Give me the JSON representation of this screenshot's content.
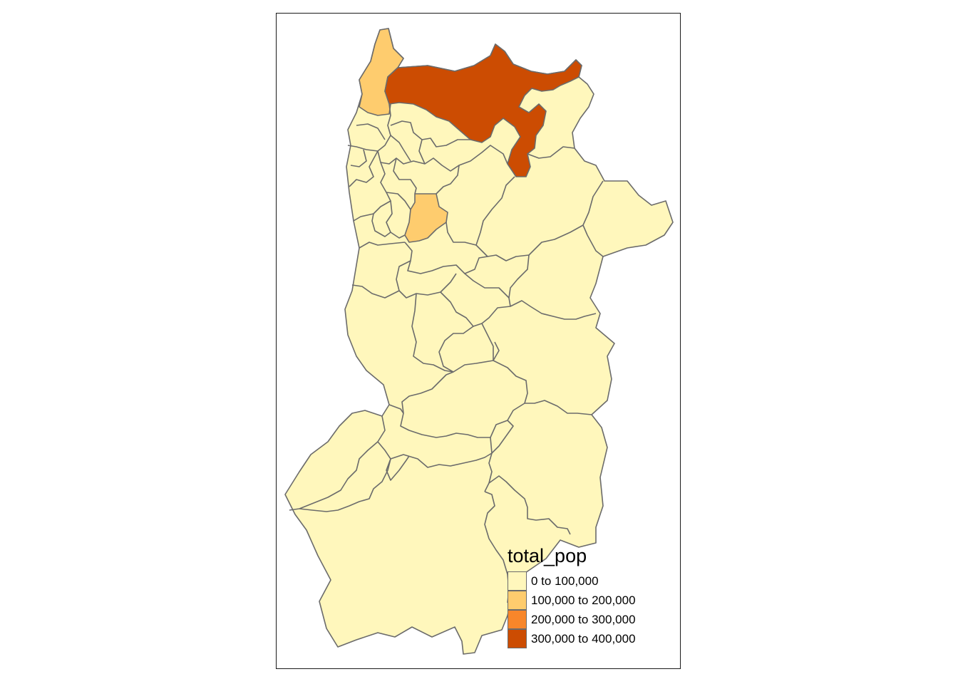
{
  "map": {
    "legend": {
      "title": "total_pop",
      "classes": [
        {
          "label": "0 to 100,000",
          "color": "#FFF7BC"
        },
        {
          "label": "100,000 to 200,000",
          "color": "#FECC6E"
        },
        {
          "label": "200,000 to 300,000",
          "color": "#F8862A"
        },
        {
          "label": "300,000 to 400,000",
          "color": "#CC4C02"
        }
      ]
    },
    "colors": {
      "low": "#FFF7BC",
      "mid_low": "#FECC6E",
      "mid_high": "#F8862A",
      "high": "#CC4C02",
      "boundary": "#6b6b6b",
      "frame": "#1a1a1a"
    }
  }
}
